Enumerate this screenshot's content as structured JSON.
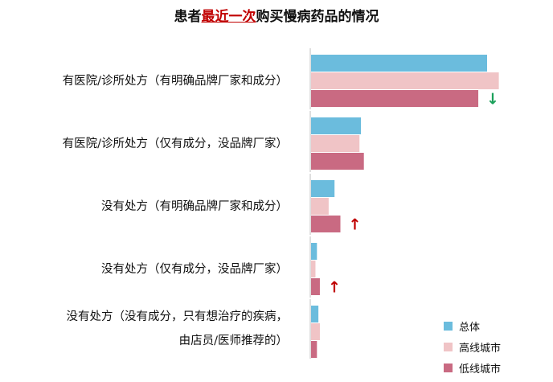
{
  "title_prefix": "患者",
  "title_highlight": "最近一次",
  "title_suffix": "购买慢病药品的情况",
  "colors": {
    "overall": "#6bbcdd",
    "high_tier": "#f0c4c6",
    "low_tier": "#c96a82",
    "arrow_down": "#1aa05a",
    "arrow_up": "#c00000"
  },
  "chart_data": {
    "type": "bar",
    "orientation": "horizontal",
    "categories": [
      "有医院/诊所处方（有明确品牌厂家和成分）",
      "有医院/诊所处方（仅有成分，没品牌厂家）",
      "没有处方（有明确品牌厂家和成分）",
      "没有处方（仅有成分，没品牌厂家）",
      "没有处方（没有成分，只有想治疗的疾病，由店员/医师推荐的）"
    ],
    "series": [
      {
        "name": "总体",
        "values": [
          60,
          17,
          8,
          2,
          2.5
        ]
      },
      {
        "name": "高线城市",
        "values": [
          64,
          16.5,
          6,
          1.5,
          3
        ]
      },
      {
        "name": "低线城市",
        "values": [
          57,
          18,
          10,
          3,
          2
        ]
      }
    ],
    "xlim": [
      0,
      80
    ],
    "annotations": [
      {
        "category_index": 0,
        "series": "低线城市",
        "symbol": "↓",
        "meaning": "down"
      },
      {
        "category_index": 2,
        "series": "低线城市",
        "symbol": "↑",
        "meaning": "up"
      },
      {
        "category_index": 3,
        "series": "低线城市",
        "symbol": "↑",
        "meaning": "up"
      }
    ],
    "legend_position": "bottom-right"
  },
  "label_lines": [
    [
      "有医院/诊所处方（有明确品牌厂家和成分）"
    ],
    [
      "有医院/诊所处方（仅有成分，没品牌厂家）"
    ],
    [
      "没有处方（有明确品牌厂家和成分）"
    ],
    [
      "没有处方（仅有成分，没品牌厂家）"
    ],
    [
      "没有处方（没有成分，只有想治疗的疾病，",
      "由店员/医师推荐的）"
    ]
  ]
}
